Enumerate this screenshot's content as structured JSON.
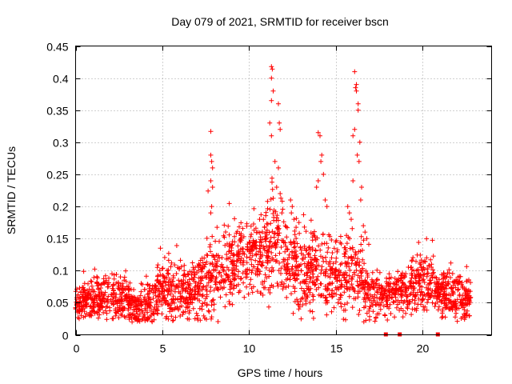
{
  "chart_data": {
    "type": "scatter",
    "title": "Day 079 of 2021, SRMTID for receiver bscn",
    "xlabel": "GPS time / hours",
    "ylabel": "SRMTID / TECUs",
    "xlim": [
      0,
      24
    ],
    "ylim": [
      0,
      0.45
    ],
    "x_ticks": [
      0,
      5,
      10,
      15,
      20
    ],
    "x_tick_labels": [
      "0",
      "5",
      "10",
      "15",
      "20"
    ],
    "y_ticks": [
      0,
      0.05,
      0.1,
      0.15,
      0.2,
      0.25,
      0.3,
      0.35,
      0.4,
      0.45
    ],
    "y_tick_labels": [
      "0",
      "0.05",
      "0.1",
      "0.15",
      "0.2",
      "0.25",
      "0.3",
      "0.35",
      "0.4",
      "0.45"
    ],
    "grid": true,
    "marker": "+",
    "color": "#ff0000",
    "zero_flags_x": [
      17.9,
      18.7,
      20.9
    ],
    "envelope": {
      "x": [
        0,
        1,
        2,
        3,
        3.5,
        4,
        5,
        6,
        7,
        7.5,
        8,
        9,
        10,
        10.5,
        11,
        11.5,
        12,
        12.5,
        13,
        13.5,
        14,
        14.5,
        15,
        15.5,
        16,
        16.5,
        17,
        18,
        19,
        20,
        21,
        22,
        22.8
      ],
      "base": [
        0.05,
        0.055,
        0.06,
        0.055,
        0.04,
        0.045,
        0.07,
        0.065,
        0.07,
        0.08,
        0.09,
        0.11,
        0.13,
        0.12,
        0.13,
        0.14,
        0.13,
        0.1,
        0.09,
        0.1,
        0.11,
        0.09,
        0.09,
        0.09,
        0.1,
        0.09,
        0.06,
        0.06,
        0.07,
        0.09,
        0.07,
        0.06,
        0.05
      ],
      "amp": [
        0.02,
        0.025,
        0.03,
        0.03,
        0.025,
        0.03,
        0.035,
        0.035,
        0.04,
        0.05,
        0.05,
        0.05,
        0.05,
        0.05,
        0.06,
        0.06,
        0.06,
        0.05,
        0.05,
        0.05,
        0.06,
        0.05,
        0.04,
        0.05,
        0.05,
        0.05,
        0.03,
        0.025,
        0.03,
        0.04,
        0.03,
        0.03,
        0.025
      ]
    },
    "peaks": [
      {
        "x": [
          7.8,
          7.8,
          7.85,
          7.9,
          7.8,
          7.9,
          7.85,
          7.8
        ],
        "y": [
          0.317,
          0.28,
          0.27,
          0.26,
          0.24,
          0.23,
          0.2,
          0.19
        ]
      },
      {
        "x": [
          11.3,
          11.35,
          11.3,
          11.4,
          11.3,
          11.7,
          11.75,
          11.8,
          11.7,
          11.6,
          11.5,
          11.8,
          11.9,
          12.1,
          11.2,
          11.3
        ],
        "y": [
          0.418,
          0.414,
          0.4,
          0.38,
          0.365,
          0.36,
          0.33,
          0.32,
          0.26,
          0.23,
          0.27,
          0.22,
          0.19,
          0.17,
          0.33,
          0.31
        ]
      },
      {
        "x": [
          12.4,
          12.5,
          12.45,
          12.6
        ],
        "y": [
          0.21,
          0.2,
          0.19,
          0.18
        ]
      },
      {
        "x": [
          14.0,
          14.1,
          14.2,
          14.15,
          14.3,
          14.0,
          13.9,
          14.4,
          14.5
        ],
        "y": [
          0.315,
          0.31,
          0.28,
          0.27,
          0.25,
          0.24,
          0.23,
          0.21,
          0.2
        ]
      },
      {
        "x": [
          16.1,
          16.2,
          16.2,
          16.15,
          16.3,
          16.3,
          16.1,
          16.0,
          16.4,
          16.25,
          16.35,
          16.0,
          16.5,
          16.45
        ],
        "y": [
          0.41,
          0.39,
          0.38,
          0.385,
          0.36,
          0.35,
          0.32,
          0.31,
          0.3,
          0.28,
          0.27,
          0.24,
          0.23,
          0.21
        ]
      },
      {
        "x": [
          15.7,
          15.8,
          15.9,
          16.6,
          16.7,
          16.8
        ],
        "y": [
          0.2,
          0.19,
          0.18,
          0.17,
          0.16,
          0.15
        ]
      }
    ]
  }
}
